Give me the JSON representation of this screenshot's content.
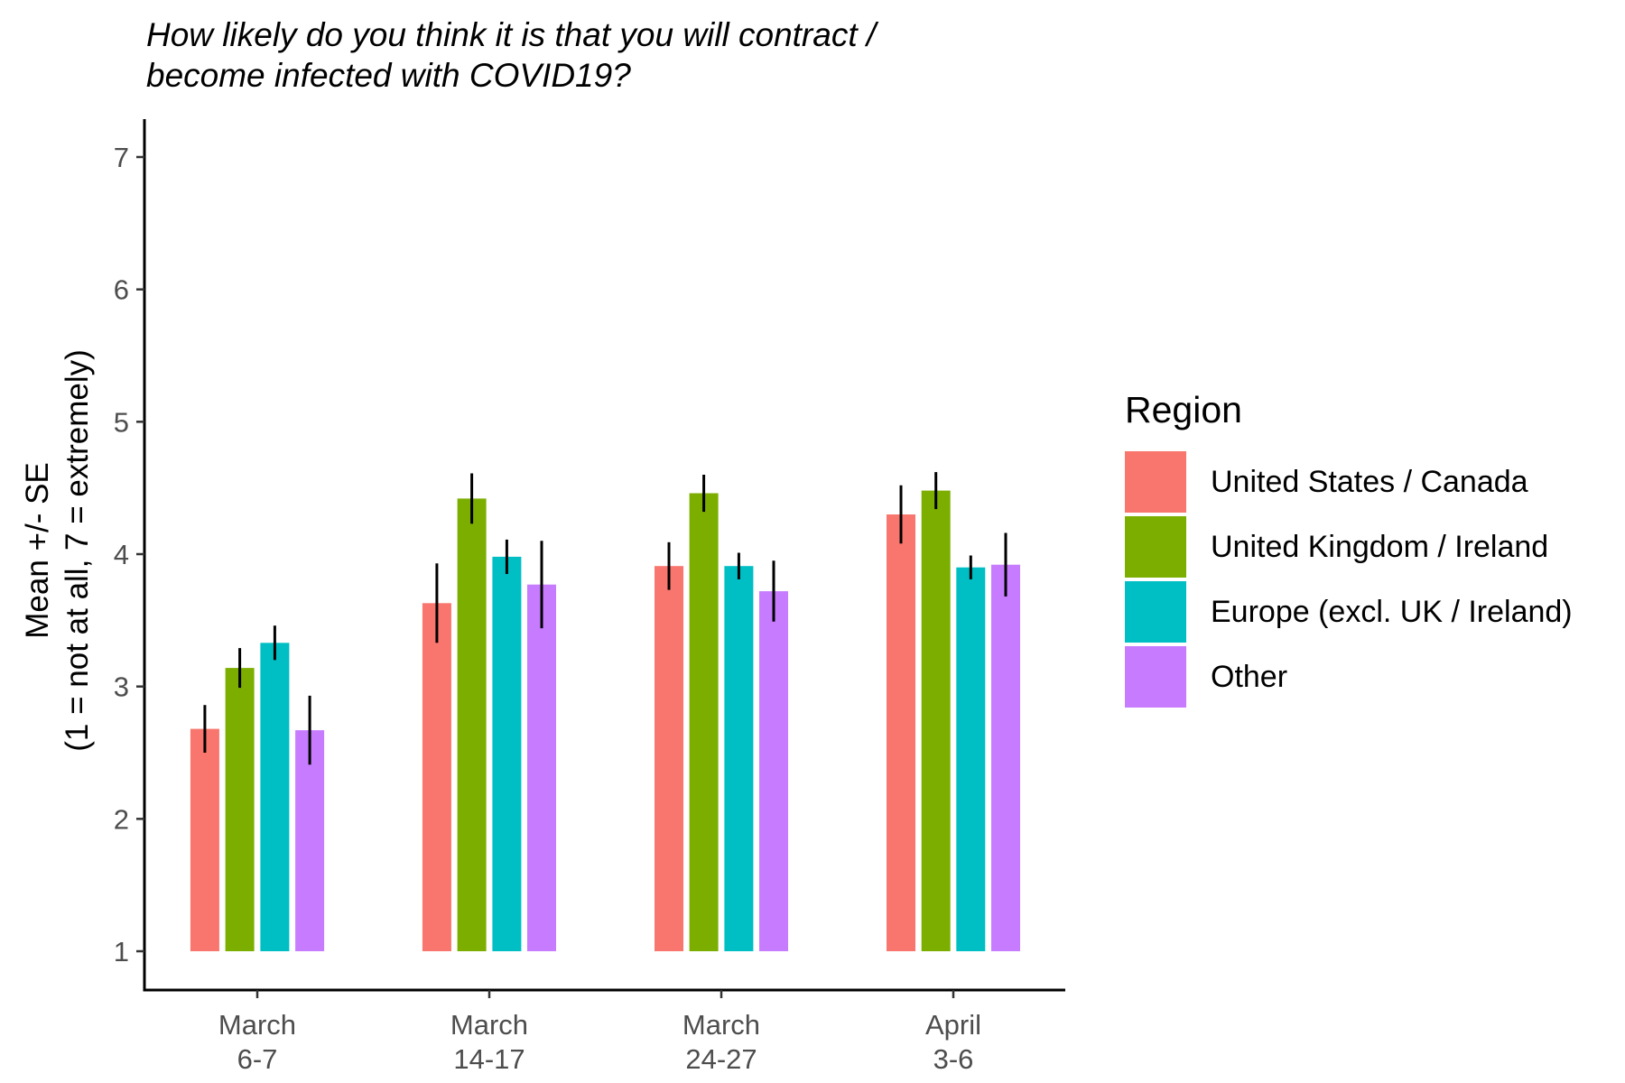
{
  "chart_data": {
    "type": "bar",
    "title": "How likely do you think it is that you will contract / become infected with COVID19?",
    "title_lines": [
      "How likely do you think it is that you will contract /",
      "become infected with COVID19?"
    ],
    "ylabel_lines": [
      "Mean +/- SE",
      "(1 = not at all, 7 = extremely)"
    ],
    "xlabel": "",
    "ylim": [
      1,
      7
    ],
    "yticks": [
      1,
      2,
      3,
      4,
      5,
      6,
      7
    ],
    "categories": [
      [
        "March",
        "6-7"
      ],
      [
        "March",
        "14-17"
      ],
      [
        "March",
        "24-27"
      ],
      [
        "April",
        "3-6"
      ]
    ],
    "legend": {
      "title": "Region",
      "position": "right"
    },
    "grid": false,
    "series": [
      {
        "name": "United States / Canada",
        "color": "#F8766D",
        "values": [
          2.68,
          3.63,
          3.91,
          4.3
        ],
        "errors": [
          0.18,
          0.3,
          0.18,
          0.22
        ]
      },
      {
        "name": "United Kingdom / Ireland",
        "color": "#7CAE00",
        "values": [
          3.14,
          4.42,
          4.46,
          4.48
        ],
        "errors": [
          0.15,
          0.19,
          0.14,
          0.14
        ]
      },
      {
        "name": "Europe (excl. UK / Ireland)",
        "color": "#00BFC4",
        "values": [
          3.33,
          3.98,
          3.91,
          3.9
        ],
        "errors": [
          0.13,
          0.13,
          0.1,
          0.09
        ]
      },
      {
        "name": "Other",
        "color": "#C77CFF",
        "values": [
          2.67,
          3.77,
          3.72,
          3.92
        ],
        "errors": [
          0.26,
          0.33,
          0.23,
          0.24
        ]
      }
    ]
  }
}
